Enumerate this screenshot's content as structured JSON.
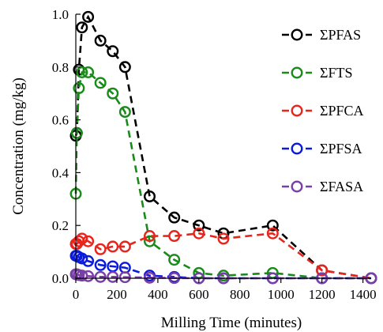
{
  "chart_data": {
    "type": "line",
    "title": "",
    "xlabel": "Milling Time (minutes)",
    "ylabel": "Concentration (mg/kg)",
    "xlim": [
      0,
      1440
    ],
    "ylim": [
      0,
      1.0
    ],
    "xticks": [
      0,
      200,
      400,
      600,
      800,
      1000,
      1200,
      1400
    ],
    "yticks": [
      0.0,
      0.2,
      0.4,
      0.6,
      0.8,
      1.0
    ],
    "ytick_labels": [
      "0.0",
      "0.2",
      "0.4",
      "0.6",
      "0.8",
      "1.0"
    ],
    "grid": false,
    "legend_position": "top-right",
    "line_style": "dashed with open circle markers",
    "series": [
      {
        "name": "ΣPFAS",
        "color": "#000000",
        "x": [
          0,
          5,
          15,
          30,
          60,
          120,
          180,
          240,
          360,
          480,
          600,
          720,
          960,
          1200,
          1440
        ],
        "y": [
          0.54,
          0.55,
          0.79,
          0.95,
          0.99,
          0.9,
          0.86,
          0.8,
          0.31,
          0.23,
          0.2,
          0.17,
          0.2,
          0.03,
          0.0
        ]
      },
      {
        "name": "ΣFTS",
        "color": "#1a8a1a",
        "x": [
          0,
          5,
          15,
          30,
          60,
          120,
          180,
          240,
          360,
          480,
          600,
          720,
          960,
          1200,
          1440
        ],
        "y": [
          0.32,
          0.55,
          0.72,
          0.78,
          0.78,
          0.74,
          0.7,
          0.63,
          0.14,
          0.07,
          0.02,
          0.01,
          0.02,
          0.0,
          0.0
        ]
      },
      {
        "name": "ΣPFCA",
        "color": "#e8251c",
        "x": [
          0,
          5,
          15,
          30,
          60,
          120,
          180,
          240,
          360,
          480,
          600,
          720,
          960,
          1200,
          1440
        ],
        "y": [
          0.13,
          0.13,
          0.14,
          0.15,
          0.14,
          0.11,
          0.12,
          0.12,
          0.16,
          0.16,
          0.17,
          0.15,
          0.17,
          0.03,
          0.0
        ]
      },
      {
        "name": "ΣPFSA",
        "color": "#0a1bdc",
        "x": [
          0,
          5,
          15,
          30,
          60,
          120,
          180,
          240,
          360,
          480,
          600,
          720,
          960,
          1200,
          1440
        ],
        "y": [
          0.085,
          0.085,
          0.08,
          0.075,
          0.065,
          0.05,
          0.045,
          0.04,
          0.01,
          0.005,
          0.0,
          0.0,
          0.0,
          0.0,
          0.0
        ]
      },
      {
        "name": "ΣFASA",
        "color": "#7a3fa6",
        "x": [
          0,
          5,
          15,
          30,
          60,
          120,
          180,
          240,
          360,
          480,
          600,
          720,
          960,
          1200,
          1440
        ],
        "y": [
          0.015,
          0.015,
          0.012,
          0.01,
          0.008,
          0.005,
          0.005,
          0.004,
          0.002,
          0.001,
          0.0,
          0.0,
          0.0,
          0.0,
          0.0
        ]
      }
    ]
  }
}
